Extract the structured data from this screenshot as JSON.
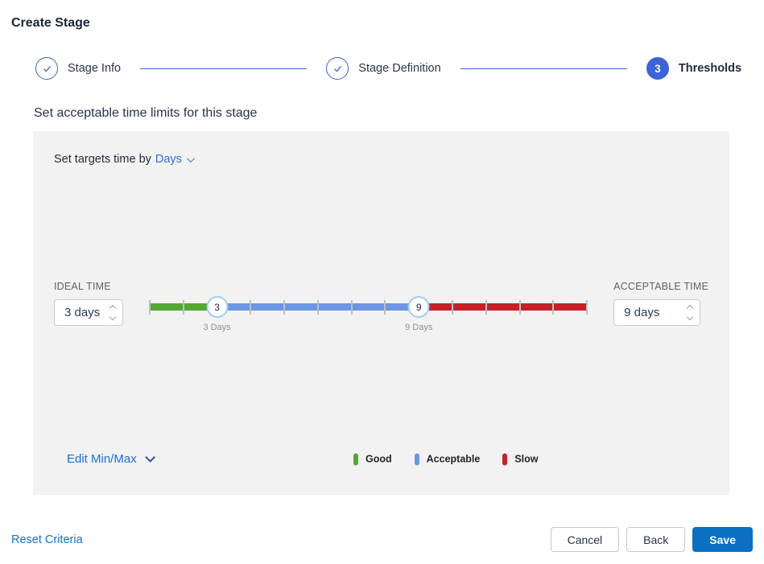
{
  "page_title": "Create Stage",
  "stepper": {
    "steps": [
      {
        "label": "Stage Info",
        "state": "complete"
      },
      {
        "label": "Stage Definition",
        "state": "complete"
      },
      {
        "label": "Thresholds",
        "state": "active",
        "number": "3"
      }
    ]
  },
  "section_heading": "Set acceptable time limits for this stage",
  "panel": {
    "targets_label": "Set targets time by",
    "targets_unit": "Days",
    "ideal": {
      "label": "IDEAL TIME",
      "value": "3 days"
    },
    "acceptable": {
      "label": "ACCEPTABLE TIME",
      "value": "9 days"
    },
    "edit_minmax_label": "Edit Min/Max",
    "legend": [
      {
        "label": "Good",
        "color": "#53a833"
      },
      {
        "label": "Acceptable",
        "color": "#6c96e2"
      },
      {
        "label": "Slow",
        "color": "#c62128"
      }
    ]
  },
  "slider": {
    "min": 1,
    "max": 14,
    "ideal_value": 3,
    "acceptable_value": 9,
    "ideal_handle_label": "3",
    "acceptable_handle_label": "9",
    "ideal_tick_label": "3 Days",
    "acceptable_tick_label": "9 Days",
    "segment_colors": {
      "good": "#53a833",
      "acceptable": "#6c96e2",
      "slow": "#c62128"
    }
  },
  "footer": {
    "reset_label": "Reset Criteria",
    "cancel_label": "Cancel",
    "back_label": "Back",
    "save_label": "Save"
  },
  "colors": {
    "accent_blue": "#3c63d9",
    "link_blue": "#1a6fd4",
    "save_blue": "#0b70c2",
    "panel_bg": "#f2f2f2"
  }
}
